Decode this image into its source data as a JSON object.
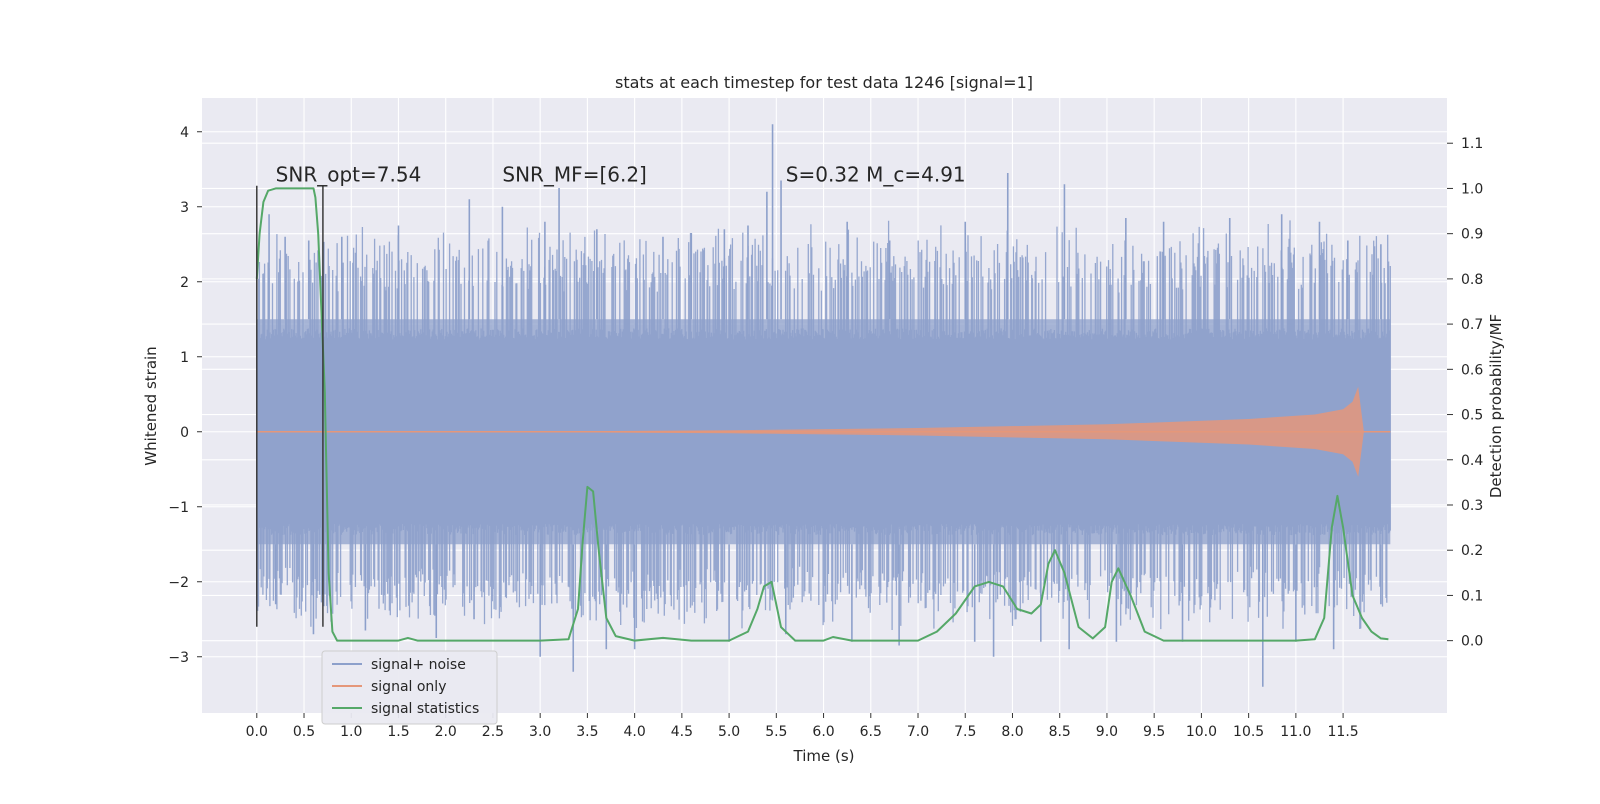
{
  "chart_data": {
    "type": "line",
    "title": "stats at each timestep for test data 1246 [signal=1]",
    "xlabel": "Time (s)",
    "ylabel": "Whitened strain",
    "y2label": "Detection probability/MF",
    "xlim": [
      -0.58,
      12.6
    ],
    "ylim": [
      -3.75,
      4.45
    ],
    "y2lim": [
      -0.16,
      1.2
    ],
    "x_ticks": [
      0.0,
      0.5,
      1.0,
      1.5,
      2.0,
      2.5,
      3.0,
      3.5,
      4.0,
      4.5,
      5.0,
      5.5,
      6.0,
      6.5,
      7.0,
      7.5,
      8.0,
      8.5,
      9.0,
      9.5,
      10.0,
      10.5,
      11.0,
      11.5
    ],
    "x_tick_labels": [
      "0.0",
      "0.5",
      "1.0",
      "1.5",
      "2.0",
      "2.5",
      "3.0",
      "3.5",
      "4.0",
      "4.5",
      "5.0",
      "5.5",
      "6.0",
      "6.5",
      "7.0",
      "7.5",
      "8.0",
      "8.5",
      "9.0",
      "9.5",
      "10.0",
      "10.5",
      "11.0",
      "11.5"
    ],
    "y_ticks": [
      -3,
      -2,
      -1,
      0,
      1,
      2,
      3,
      4
    ],
    "y_tick_labels": [
      "−3",
      "−2",
      "−1",
      "0",
      "1",
      "2",
      "3",
      "4"
    ],
    "y2_ticks": [
      0.0,
      0.1,
      0.2,
      0.3,
      0.4,
      0.5,
      0.6,
      0.7,
      0.8,
      0.9,
      1.0,
      1.1
    ],
    "y2_tick_labels": [
      "0.0",
      "0.1",
      "0.2",
      "0.3",
      "0.4",
      "0.5",
      "0.6",
      "0.7",
      "0.8",
      "0.9",
      "1.0",
      "1.1"
    ],
    "grid": true,
    "legend_position": "lower-left",
    "annotations": [
      {
        "text": "SNR_opt=7.54",
        "x": 0.2,
        "y": 3.3
      },
      {
        "text": "SNR_MF=[6.2]",
        "x": 2.6,
        "y": 3.3
      },
      {
        "text": "S=0.32   M_c=4.91",
        "x": 5.6,
        "y": 3.3
      }
    ],
    "vlines": [
      {
        "x": 0.0,
        "ymin": -2.6,
        "ymax": 3.28
      },
      {
        "x": 0.7,
        "ymin": -2.6,
        "ymax": 3.28
      }
    ],
    "series": [
      {
        "name": "signal+ noise",
        "axis": "left",
        "color": "#8da0cb",
        "kind": "noise-band",
        "x_range": [
          0.0,
          12.0
        ],
        "core_range": [
          -1.5,
          1.5
        ],
        "peak_points": [
          [
            0.13,
            2.9
          ],
          [
            0.3,
            2.6
          ],
          [
            0.55,
            2.55
          ],
          [
            0.9,
            2.6
          ],
          [
            1.5,
            2.75
          ],
          [
            2.25,
            3.1
          ],
          [
            2.6,
            3.0
          ],
          [
            3.05,
            2.8
          ],
          [
            3.2,
            3.25
          ],
          [
            3.6,
            2.7
          ],
          [
            4.3,
            2.6
          ],
          [
            4.6,
            2.65
          ],
          [
            4.95,
            2.7
          ],
          [
            5.2,
            2.75
          ],
          [
            5.4,
            3.2
          ],
          [
            5.46,
            4.1
          ],
          [
            5.55,
            3.35
          ],
          [
            6.25,
            2.8
          ],
          [
            6.7,
            2.55
          ],
          [
            7.5,
            2.8
          ],
          [
            7.95,
            3.45
          ],
          [
            8.55,
            3.3
          ],
          [
            9.2,
            2.85
          ],
          [
            9.6,
            2.8
          ],
          [
            10.3,
            2.85
          ],
          [
            10.85,
            2.9
          ],
          [
            11.25,
            2.8
          ],
          [
            11.55,
            2.55
          ],
          [
            11.9,
            2.5
          ]
        ],
        "trough_points": [
          [
            0.2,
            -2.3
          ],
          [
            0.6,
            -2.7
          ],
          [
            1.15,
            -2.65
          ],
          [
            1.9,
            -2.75
          ],
          [
            2.3,
            -2.5
          ],
          [
            3.0,
            -3.0
          ],
          [
            3.35,
            -3.2
          ],
          [
            3.7,
            -2.9
          ],
          [
            4.0,
            -2.9
          ],
          [
            5.0,
            -2.8
          ],
          [
            5.6,
            -2.7
          ],
          [
            6.3,
            -2.8
          ],
          [
            6.8,
            -2.85
          ],
          [
            7.6,
            -2.8
          ],
          [
            7.8,
            -3.0
          ],
          [
            8.3,
            -2.8
          ],
          [
            8.6,
            -2.9
          ],
          [
            9.1,
            -2.8
          ],
          [
            9.8,
            -2.8
          ],
          [
            10.65,
            -3.4
          ],
          [
            11.0,
            -2.8
          ],
          [
            11.4,
            -2.9
          ],
          [
            11.9,
            -2.3
          ]
        ]
      },
      {
        "name": "signal only",
        "axis": "left",
        "color": "#e5977a",
        "kind": "chirp-envelope",
        "envelope": [
          [
            0.0,
            0.0
          ],
          [
            3.0,
            0.005
          ],
          [
            5.0,
            0.02
          ],
          [
            7.0,
            0.05
          ],
          [
            9.0,
            0.1
          ],
          [
            10.5,
            0.17
          ],
          [
            11.2,
            0.23
          ],
          [
            11.5,
            0.3
          ],
          [
            11.6,
            0.4
          ],
          [
            11.66,
            0.6
          ],
          [
            11.69,
            0.3
          ],
          [
            11.72,
            0.0
          ],
          [
            12.0,
            0.0
          ]
        ]
      },
      {
        "name": "signal statistics",
        "axis": "right",
        "color": "#55a868",
        "kind": "line",
        "x": [
          0.0,
          0.03,
          0.07,
          0.12,
          0.2,
          0.3,
          0.4,
          0.5,
          0.6,
          0.62,
          0.65,
          0.72,
          0.76,
          0.8,
          0.85,
          0.95,
          1.2,
          1.5,
          1.6,
          1.7,
          2.0,
          2.5,
          3.0,
          3.3,
          3.4,
          3.45,
          3.5,
          3.56,
          3.62,
          3.7,
          3.8,
          4.0,
          4.3,
          4.6,
          5.0,
          5.2,
          5.3,
          5.37,
          5.45,
          5.55,
          5.7,
          6.0,
          6.1,
          6.3,
          6.5,
          7.0,
          7.2,
          7.4,
          7.6,
          7.75,
          7.9,
          8.05,
          8.2,
          8.3,
          8.38,
          8.45,
          8.55,
          8.7,
          8.85,
          8.98,
          9.05,
          9.12,
          9.25,
          9.4,
          9.6,
          10.0,
          10.5,
          11.0,
          11.2,
          11.3,
          11.38,
          11.44,
          11.5,
          11.6,
          11.7,
          11.8,
          11.9,
          11.98
        ],
        "y": [
          0.8,
          0.9,
          0.97,
          0.995,
          1.0,
          1.0,
          1.0,
          1.0,
          1.0,
          0.98,
          0.9,
          0.55,
          0.15,
          0.02,
          0.0,
          0.0,
          0.0,
          0.0,
          0.006,
          0.0,
          0.0,
          0.0,
          0.0,
          0.003,
          0.07,
          0.22,
          0.34,
          0.33,
          0.2,
          0.05,
          0.01,
          0.0,
          0.006,
          0.0,
          0.0,
          0.02,
          0.07,
          0.12,
          0.13,
          0.03,
          0.0,
          0.0,
          0.008,
          0.0,
          0.0,
          0.0,
          0.02,
          0.06,
          0.12,
          0.13,
          0.12,
          0.07,
          0.06,
          0.08,
          0.17,
          0.2,
          0.15,
          0.03,
          0.005,
          0.03,
          0.13,
          0.16,
          0.1,
          0.02,
          0.0,
          0.0,
          0.0,
          0.0,
          0.003,
          0.05,
          0.25,
          0.32,
          0.25,
          0.1,
          0.05,
          0.02,
          0.005,
          0.003
        ]
      }
    ]
  }
}
